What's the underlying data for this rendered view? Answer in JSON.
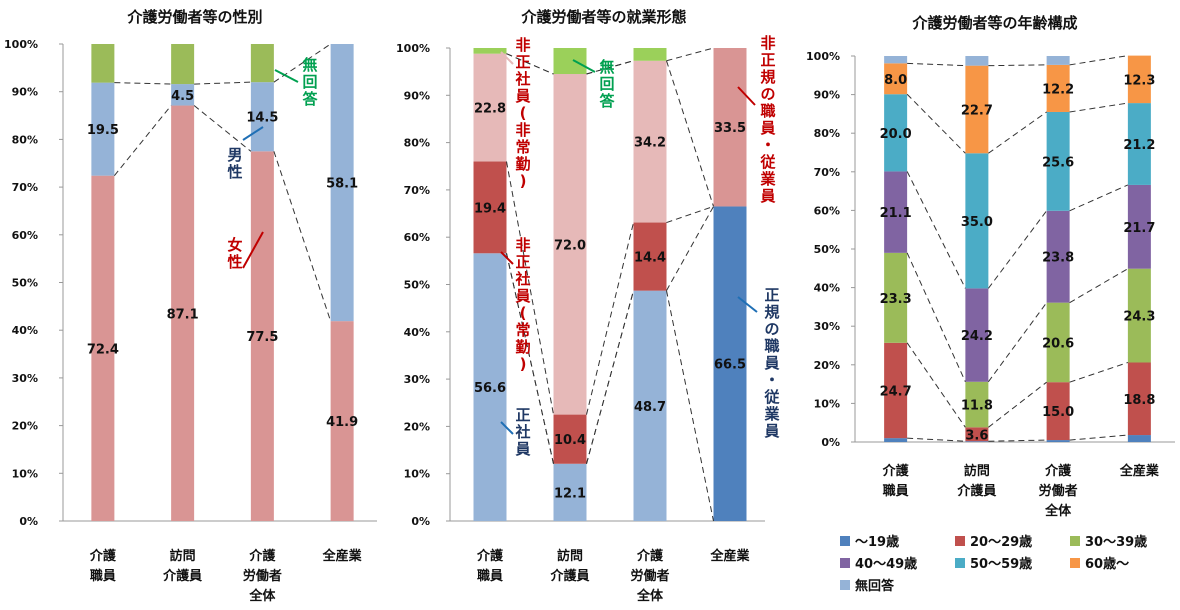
{
  "chart_data": [
    {
      "type": "bar",
      "stacked": true,
      "title": "介護労働者等の性別",
      "ylim": [
        0,
        100
      ],
      "yticks": [
        "0%",
        "10%",
        "20%",
        "30%",
        "40%",
        "50%",
        "60%",
        "70%",
        "80%",
        "90%",
        "100%"
      ],
      "categories": [
        [
          "介護",
          "職員"
        ],
        [
          "訪問",
          "介護員"
        ],
        [
          "介護",
          "労働者",
          "全体"
        ],
        [
          "全産業"
        ]
      ],
      "series": [
        {
          "name": "女性",
          "values": [
            72.4,
            87.1,
            77.5,
            41.9
          ],
          "labels": [
            "72.4",
            "87.1",
            "77.5",
            "41.9"
          ],
          "color": "#d99594"
        },
        {
          "name": "男性",
          "values": [
            19.5,
            4.5,
            14.5,
            58.1
          ],
          "labels": [
            "19.5",
            "4.5",
            "14.5",
            "58.1"
          ],
          "color": "#95b3d7"
        },
        {
          "name": "無回答",
          "values": [
            8.1,
            8.4,
            8.0,
            0
          ],
          "labels": [
            "",
            "",
            "",
            ""
          ],
          "color": "#9bbb59"
        }
      ],
      "annotations": [
        {
          "text": "無回答",
          "color": "#00a050"
        },
        {
          "text": "男性",
          "color": "#1f3864"
        },
        {
          "text": "女性",
          "color": "#c00000"
        }
      ],
      "grid": false
    },
    {
      "type": "bar",
      "stacked": true,
      "title": "介護労働者等の就業形態",
      "ylim": [
        0,
        100
      ],
      "yticks": [
        "0%",
        "10%",
        "20%",
        "30%",
        "40%",
        "50%",
        "60%",
        "70%",
        "80%",
        "90%",
        "100%"
      ],
      "categories": [
        [
          "介護",
          "職員"
        ],
        [
          "訪問",
          "介護員"
        ],
        [
          "介護",
          "労働者",
          "全体"
        ],
        [
          "全産業"
        ]
      ],
      "series": [
        {
          "name": "正社員",
          "values": [
            56.6,
            12.1,
            48.7,
            0
          ],
          "labels": [
            "56.6",
            "12.1",
            "48.7",
            ""
          ],
          "color": "#95b3d7"
        },
        {
          "name": "正規の職員・従業員",
          "values": [
            0,
            0,
            0,
            66.5
          ],
          "labels": [
            "",
            "",
            "",
            "66.5"
          ],
          "color": "#4f81bd"
        },
        {
          "name": "非正社員(常勤)",
          "values": [
            19.4,
            10.4,
            14.4,
            0
          ],
          "labels": [
            "19.4",
            "10.4",
            "14.4",
            ""
          ],
          "color": "#c0504d"
        },
        {
          "name": "非正社員(非常勤)",
          "values": [
            22.8,
            72.0,
            34.2,
            0
          ],
          "labels": [
            "22.8",
            "72.0",
            "34.2",
            ""
          ],
          "color": "#e6b9b8"
        },
        {
          "name": "非正規の職員・従業員",
          "values": [
            0,
            0,
            0,
            33.5
          ],
          "labels": [
            "",
            "",
            "",
            "33.5"
          ],
          "color": "#d99594"
        },
        {
          "name": "無回答",
          "values": [
            1.2,
            5.5,
            2.7,
            0
          ],
          "labels": [
            "",
            "",
            "",
            ""
          ],
          "color": "#9bd05a"
        }
      ],
      "annotations": [
        {
          "text": "非正社員(非常勤)",
          "color": "#c00000"
        },
        {
          "text": "非正社員(常勤)",
          "color": "#c00000"
        },
        {
          "text": "正社員",
          "color": "#1f3864"
        },
        {
          "text": "無回答",
          "color": "#00a050"
        },
        {
          "text": "非正規の職員・従業員",
          "color": "#c00000"
        },
        {
          "text": "正規の職員・従業員",
          "color": "#1f3864"
        }
      ],
      "grid": false
    },
    {
      "type": "bar",
      "stacked": true,
      "title": "介護労働者等の年齢構成",
      "ylim": [
        0,
        100
      ],
      "yticks": [
        "0%",
        "10%",
        "20%",
        "30%",
        "40%",
        "50%",
        "60%",
        "70%",
        "80%",
        "90%",
        "100%"
      ],
      "categories": [
        [
          "介護",
          "職員"
        ],
        [
          "訪問",
          "介護員"
        ],
        [
          "介護",
          "労働者",
          "全体"
        ],
        [
          "全産業"
        ]
      ],
      "series": [
        {
          "name": "～19歳",
          "values": [
            1.0,
            0.2,
            0.5,
            1.8
          ],
          "labels": [
            "",
            "",
            "",
            ""
          ],
          "color": "#4f81bd"
        },
        {
          "name": "20～29歳",
          "values": [
            24.7,
            3.6,
            15.0,
            18.8
          ],
          "labels": [
            "24.7",
            "3.6",
            "15.0",
            "18.8"
          ],
          "color": "#c0504d"
        },
        {
          "name": "30～39歳",
          "values": [
            23.3,
            11.8,
            20.6,
            24.3
          ],
          "labels": [
            "23.3",
            "11.8",
            "20.6",
            "24.3"
          ],
          "color": "#9bbb59"
        },
        {
          "name": "40～49歳",
          "values": [
            21.1,
            24.2,
            23.8,
            21.7
          ],
          "labels": [
            "21.1",
            "24.2",
            "23.8",
            "21.7"
          ],
          "color": "#8064a2"
        },
        {
          "name": "50～59歳",
          "values": [
            20.0,
            35.0,
            25.6,
            21.2
          ],
          "labels": [
            "20.0",
            "35.0",
            "25.6",
            "21.2"
          ],
          "color": "#4bacc6"
        },
        {
          "name": "60歳～",
          "values": [
            8.0,
            22.7,
            12.2,
            12.3
          ],
          "labels": [
            "8.0",
            "22.7",
            "12.2",
            "12.3"
          ],
          "color": "#f79646"
        },
        {
          "name": "無回答",
          "values": [
            1.9,
            2.5,
            2.3,
            0
          ],
          "labels": [
            "",
            "",
            "",
            ""
          ],
          "color": "#95b3d7"
        }
      ],
      "legend_position": "bottom",
      "grid": false
    }
  ]
}
